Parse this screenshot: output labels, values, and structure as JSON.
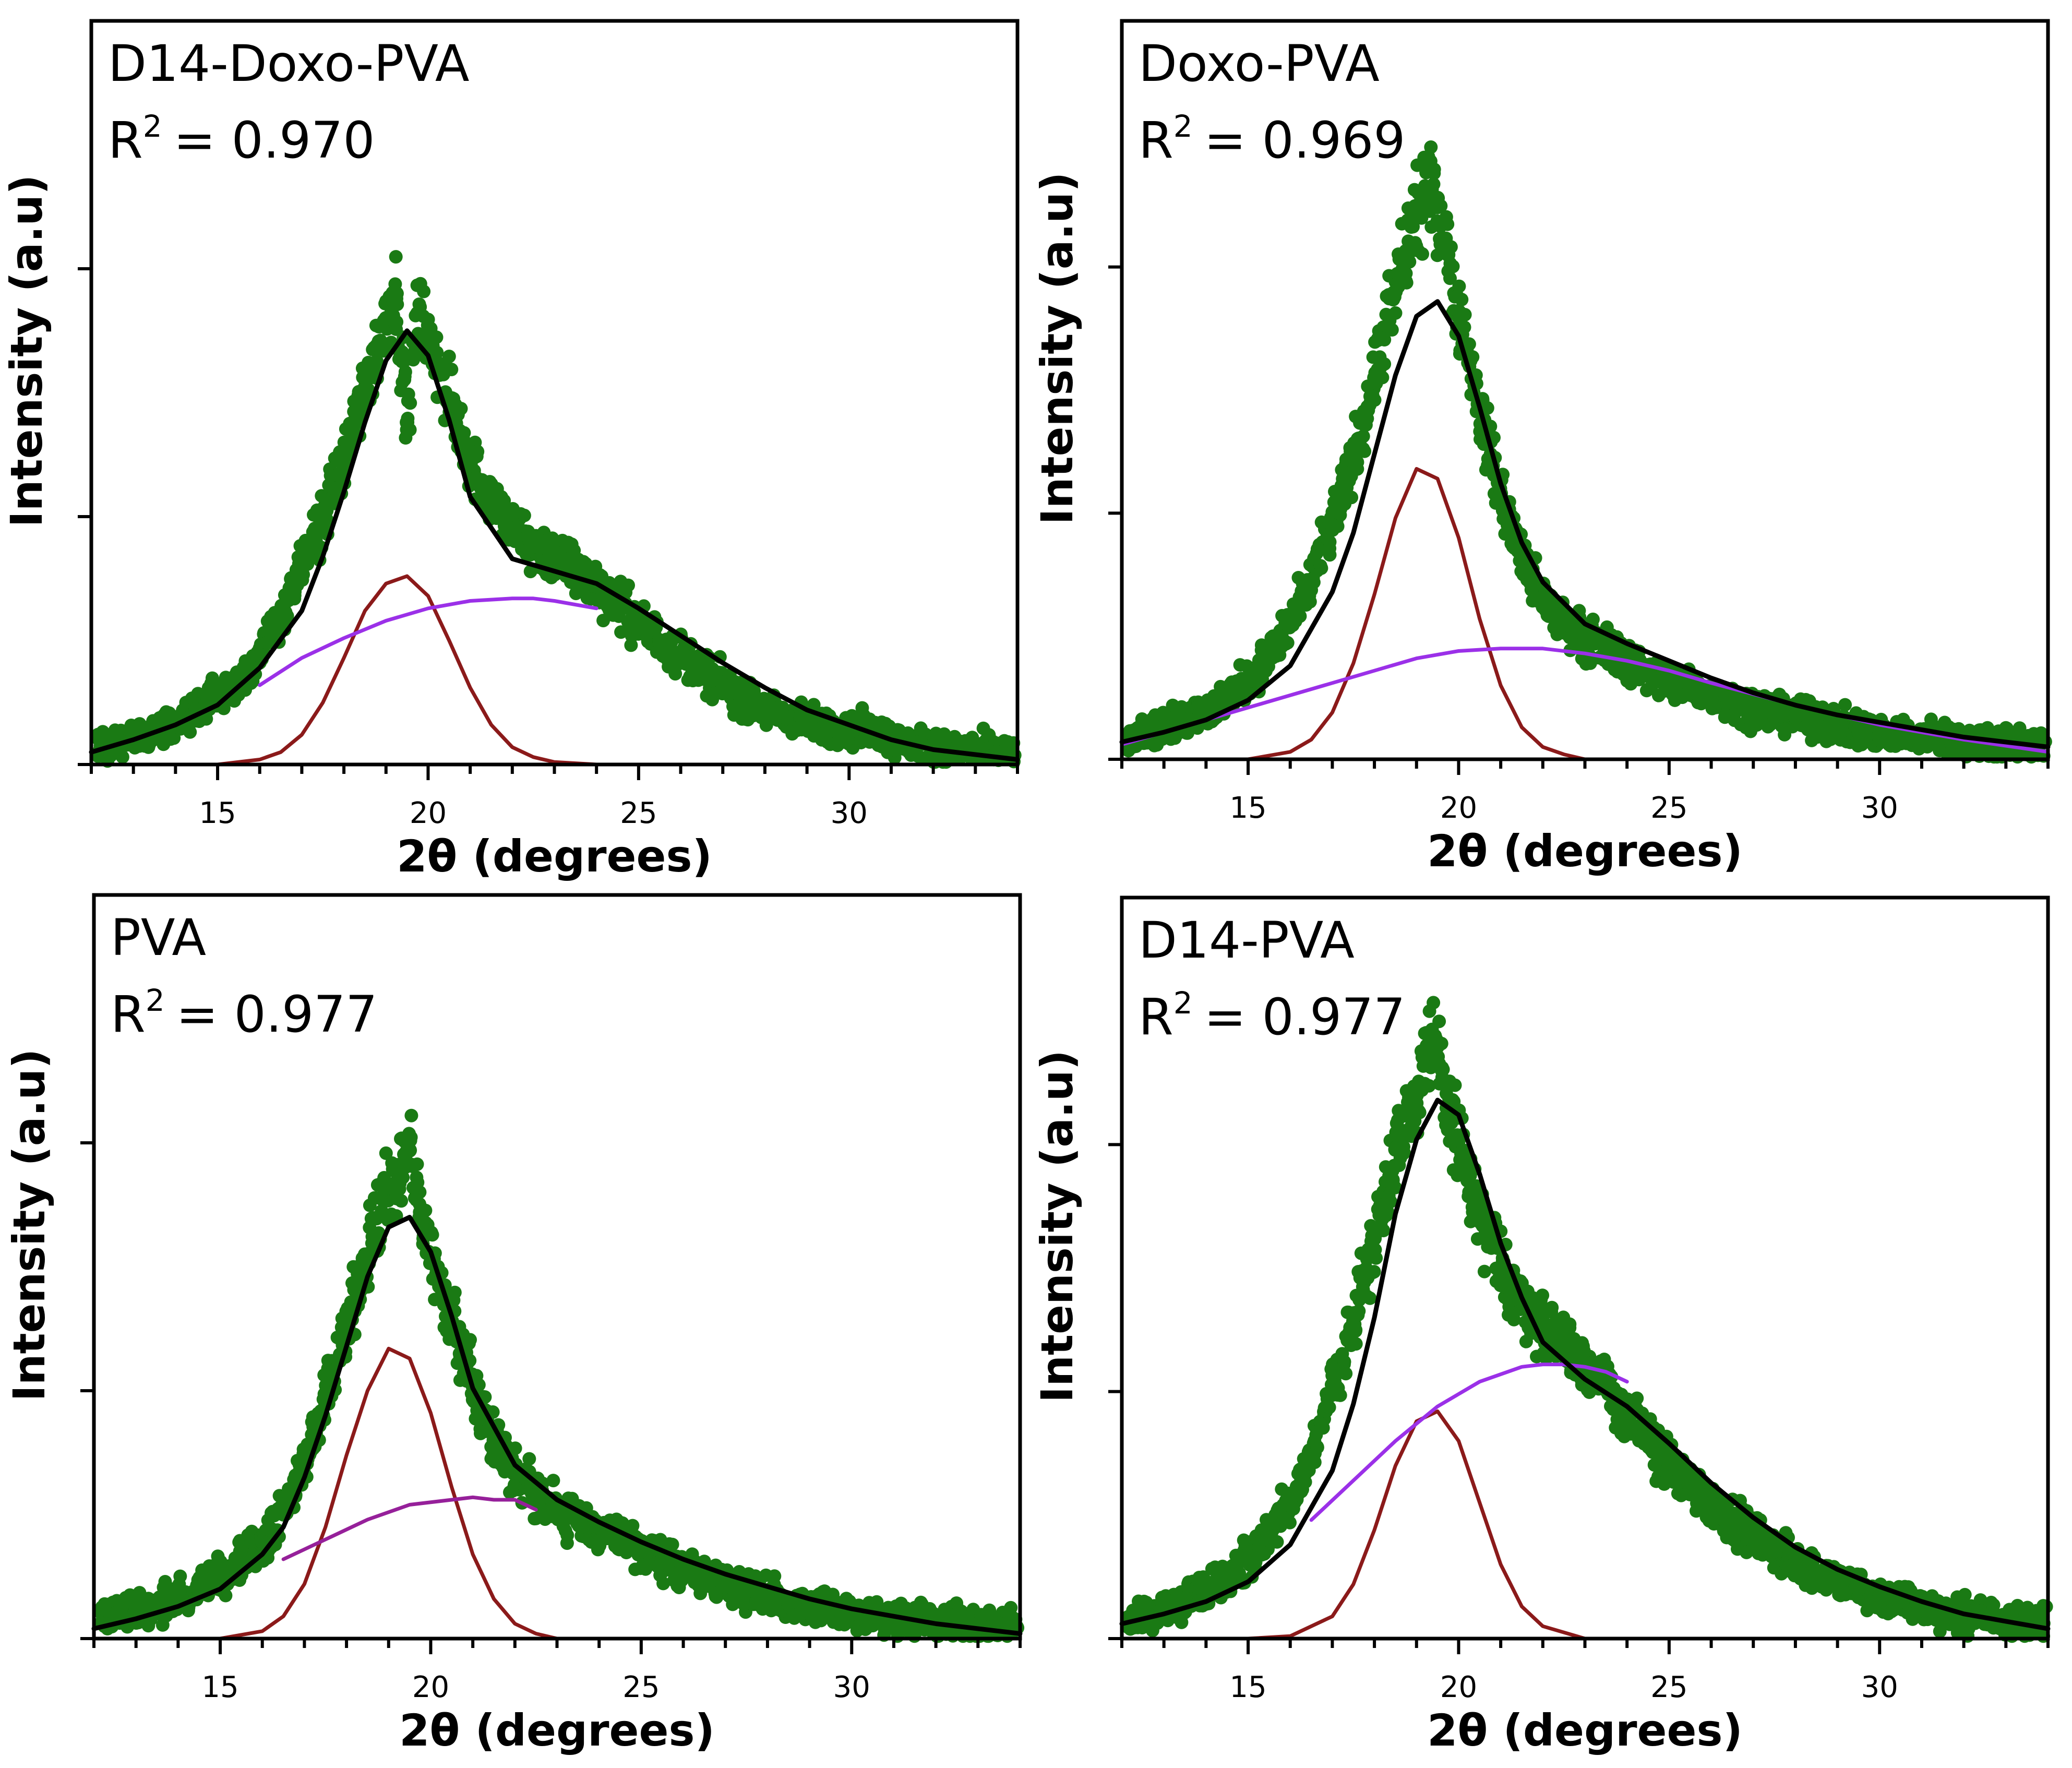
{
  "chart_data": [
    {
      "type": "scatter",
      "title": "D14-Doxo-PVA",
      "r2_label": "R",
      "r2_exponent": "2",
      "r2_value": "= 0.970",
      "xlabel": "2θ (degrees)",
      "ylabel": "Intensity (a.u)",
      "xlim": [
        12,
        34
      ],
      "ylim": [
        0,
        3
      ],
      "xticks": [
        "15",
        "20",
        "25",
        "30"
      ],
      "xtick_values": [
        15,
        20,
        25,
        30
      ],
      "ytick_values": [
        0,
        1,
        2
      ],
      "series": [
        {
          "name": "data",
          "color": "#1a7a14",
          "kind": "points",
          "x": [
            12.5,
            13,
            13.5,
            14,
            14.5,
            15,
            15.5,
            16,
            16.5,
            17,
            17.5,
            18,
            18.5,
            19,
            19.25,
            19.5,
            19.75,
            20,
            20.5,
            21,
            21.5,
            22,
            22.5,
            23,
            23.5,
            24,
            24.5,
            25,
            25.5,
            26,
            26.5,
            27,
            27.5,
            28,
            28.5,
            29,
            29.5,
            30,
            30.5,
            31,
            31.5,
            32,
            32.5,
            33,
            33.5
          ],
          "y": [
            0.08,
            0.11,
            0.13,
            0.17,
            0.22,
            0.27,
            0.34,
            0.44,
            0.6,
            0.78,
            1.0,
            1.23,
            1.52,
            1.8,
            1.9,
            1.38,
            1.82,
            1.72,
            1.48,
            1.23,
            1.06,
            0.95,
            0.88,
            0.84,
            0.78,
            0.72,
            0.66,
            0.57,
            0.5,
            0.45,
            0.38,
            0.32,
            0.26,
            0.22,
            0.19,
            0.17,
            0.15,
            0.13,
            0.15,
            0.1,
            0.08,
            0.07,
            0.06,
            0.06,
            0.05
          ]
        },
        {
          "name": "fit",
          "color": "#000000",
          "kind": "line",
          "x": [
            12,
            13,
            14,
            15,
            16,
            17,
            17.5,
            18,
            18.5,
            19,
            19.5,
            20,
            20.5,
            21,
            22,
            23,
            24,
            25,
            26,
            27,
            28,
            29,
            30,
            31,
            32,
            33,
            34
          ],
          "y": [
            0.05,
            0.1,
            0.16,
            0.24,
            0.39,
            0.62,
            0.84,
            1.1,
            1.38,
            1.63,
            1.75,
            1.65,
            1.39,
            1.08,
            0.83,
            0.78,
            0.73,
            0.63,
            0.52,
            0.41,
            0.31,
            0.22,
            0.16,
            0.1,
            0.06,
            0.04,
            0.02
          ]
        },
        {
          "name": "crystalline peak",
          "color": "#8b1a1a",
          "kind": "line",
          "x": [
            14,
            15,
            16,
            16.5,
            17,
            17.5,
            18,
            18.5,
            19,
            19.5,
            20,
            20.5,
            21,
            21.5,
            22,
            22.5,
            23,
            24,
            25,
            27,
            29
          ],
          "y": [
            0,
            0,
            0.02,
            0.05,
            0.12,
            0.25,
            0.43,
            0.62,
            0.73,
            0.76,
            0.68,
            0.5,
            0.31,
            0.16,
            0.07,
            0.03,
            0.01,
            0,
            0,
            0,
            0
          ]
        },
        {
          "name": "amorphous halo",
          "color": "#9b30e8",
          "kind": "line",
          "x": [
            16,
            17,
            18,
            19,
            20,
            21,
            22,
            22.5,
            23,
            24
          ],
          "y": [
            0.32,
            0.43,
            0.51,
            0.58,
            0.63,
            0.66,
            0.67,
            0.67,
            0.66,
            0.63
          ]
        }
      ]
    },
    {
      "type": "scatter",
      "title": "Doxo-PVA",
      "r2_label": "R",
      "r2_exponent": "2",
      "r2_value": "= 0.969",
      "xlabel": "2θ (degrees)",
      "ylabel": "Intensity (a.u)",
      "xlim": [
        12,
        34
      ],
      "ylim": [
        0,
        3
      ],
      "xticks": [
        "15",
        "20",
        "25",
        "30"
      ],
      "xtick_values": [
        15,
        20,
        25,
        30
      ],
      "ytick_values": [
        0,
        1,
        2
      ],
      "series": [
        {
          "name": "data",
          "color": "#1a7a14",
          "kind": "points",
          "x": [
            12.5,
            13,
            13.5,
            14,
            14.5,
            15,
            15.5,
            16,
            16.5,
            17,
            17.5,
            18,
            18.5,
            19,
            19.25,
            19.5,
            19.75,
            20,
            20.5,
            21,
            21.5,
            22,
            22.5,
            23,
            23.5,
            24,
            24.5,
            25,
            25.5,
            26,
            26.5,
            27,
            27.5,
            28,
            28.5,
            29,
            29.5,
            30,
            30.5,
            31,
            31.5,
            32,
            32.5,
            33,
            33.5
          ],
          "y": [
            0.1,
            0.13,
            0.16,
            0.2,
            0.26,
            0.32,
            0.42,
            0.55,
            0.72,
            0.95,
            1.22,
            1.55,
            1.9,
            2.2,
            2.3,
            2.28,
            2.05,
            1.82,
            1.42,
            1.08,
            0.82,
            0.64,
            0.55,
            0.49,
            0.45,
            0.4,
            0.35,
            0.31,
            0.29,
            0.26,
            0.23,
            0.21,
            0.19,
            0.17,
            0.15,
            0.14,
            0.12,
            0.11,
            0.1,
            0.09,
            0.09,
            0.08,
            0.07,
            0.07,
            0.06
          ]
        },
        {
          "name": "fit",
          "color": "#000000",
          "kind": "line",
          "x": [
            12,
            13,
            14,
            15,
            16,
            17,
            17.5,
            18,
            18.5,
            19,
            19.5,
            20,
            20.5,
            21,
            21.5,
            22,
            23,
            24,
            25,
            26,
            27,
            28,
            29,
            30,
            31,
            32,
            33,
            34
          ],
          "y": [
            0.07,
            0.11,
            0.16,
            0.24,
            0.38,
            0.68,
            0.92,
            1.24,
            1.56,
            1.8,
            1.86,
            1.72,
            1.43,
            1.12,
            0.88,
            0.72,
            0.55,
            0.47,
            0.4,
            0.33,
            0.27,
            0.22,
            0.18,
            0.15,
            0.12,
            0.09,
            0.07,
            0.05
          ]
        },
        {
          "name": "crystalline peak",
          "color": "#8b1a1a",
          "kind": "line",
          "x": [
            15,
            16,
            16.5,
            17,
            17.5,
            18,
            18.5,
            19,
            19.5,
            20,
            20.5,
            21,
            21.5,
            22,
            22.5,
            23,
            24,
            25
          ],
          "y": [
            0,
            0.03,
            0.08,
            0.19,
            0.39,
            0.67,
            0.98,
            1.18,
            1.14,
            0.9,
            0.57,
            0.3,
            0.13,
            0.05,
            0.02,
            0,
            0,
            0
          ]
        },
        {
          "name": "amorphous halo",
          "color": "#9b30e8",
          "kind": "line",
          "x": [
            12,
            14,
            16,
            18,
            19,
            20,
            21,
            22,
            23,
            24,
            25,
            26,
            28,
            30,
            32,
            34
          ],
          "y": [
            0.06,
            0.16,
            0.26,
            0.36,
            0.41,
            0.44,
            0.45,
            0.45,
            0.43,
            0.4,
            0.36,
            0.31,
            0.22,
            0.14,
            0.08,
            0.03
          ]
        }
      ]
    },
    {
      "type": "scatter",
      "title": "PVA",
      "r2_label": "R",
      "r2_exponent": "2",
      "r2_value": "= 0.977",
      "xlabel": "2θ (degrees)",
      "ylabel": "Intensity (a.u)",
      "xlim": [
        12,
        34
      ],
      "ylim": [
        0,
        3
      ],
      "xticks": [
        "15",
        "20",
        "25",
        "30"
      ],
      "xtick_values": [
        15,
        20,
        25,
        30
      ],
      "ytick_values": [
        0,
        1,
        2
      ],
      "series": [
        {
          "name": "data",
          "color": "#1a7a14",
          "kind": "points",
          "x": [
            12.5,
            13,
            13.5,
            14,
            14.5,
            15,
            15.5,
            16,
            16.5,
            17,
            17.5,
            18,
            18.5,
            19,
            19.25,
            19.5,
            19.75,
            20,
            20.5,
            21,
            21.5,
            22,
            22.5,
            23,
            23.5,
            24,
            24.5,
            25,
            25.5,
            26,
            26.5,
            27,
            27.5,
            28,
            28.5,
            29,
            29.5,
            30,
            30.5,
            31,
            31.5,
            32,
            32.5,
            33,
            33.5
          ],
          "y": [
            0.1,
            0.12,
            0.13,
            0.16,
            0.2,
            0.25,
            0.31,
            0.39,
            0.52,
            0.7,
            0.95,
            1.26,
            1.55,
            1.82,
            1.85,
            1.97,
            1.72,
            1.55,
            1.28,
            1.02,
            0.8,
            0.68,
            0.58,
            0.52,
            0.48,
            0.45,
            0.41,
            0.36,
            0.32,
            0.28,
            0.24,
            0.21,
            0.19,
            0.17,
            0.14,
            0.13,
            0.12,
            0.1,
            0.09,
            0.08,
            0.08,
            0.07,
            0.07,
            0.06,
            0.06
          ]
        },
        {
          "name": "fit",
          "color": "#000000",
          "kind": "line",
          "x": [
            12,
            13,
            14,
            15,
            16,
            16.5,
            17,
            17.5,
            18,
            18.5,
            19,
            19.5,
            20,
            20.5,
            21,
            22,
            23,
            24,
            25,
            26,
            27,
            28,
            29,
            30,
            31,
            32,
            33,
            34
          ],
          "y": [
            0.04,
            0.08,
            0.13,
            0.2,
            0.34,
            0.45,
            0.65,
            0.9,
            1.18,
            1.46,
            1.66,
            1.7,
            1.56,
            1.3,
            1.01,
            0.7,
            0.56,
            0.47,
            0.39,
            0.32,
            0.26,
            0.21,
            0.16,
            0.12,
            0.09,
            0.06,
            0.04,
            0.02
          ]
        },
        {
          "name": "crystalline peak",
          "color": "#8b1a1a",
          "kind": "line",
          "x": [
            15,
            16,
            16.5,
            17,
            17.5,
            18,
            18.5,
            19,
            19.5,
            20,
            20.5,
            21,
            21.5,
            22,
            22.5,
            23,
            23.5,
            24
          ],
          "y": [
            0,
            0.03,
            0.09,
            0.22,
            0.45,
            0.74,
            1.0,
            1.17,
            1.13,
            0.91,
            0.61,
            0.34,
            0.16,
            0.06,
            0.02,
            0,
            0,
            0
          ]
        },
        {
          "name": "amorphous halo",
          "color": "#96209a",
          "kind": "line",
          "x": [
            16.5,
            17.5,
            18.5,
            19.5,
            20.5,
            21,
            21.5,
            22,
            22.5
          ],
          "y": [
            0.32,
            0.4,
            0.48,
            0.54,
            0.56,
            0.57,
            0.56,
            0.56,
            0.52
          ]
        }
      ]
    },
    {
      "type": "scatter",
      "title": "D14-PVA",
      "r2_label": "R",
      "r2_exponent": "2",
      "r2_value": "= 0.977",
      "xlabel": "2θ (degrees)",
      "ylabel": "Intensity (a.u)",
      "xlim": [
        12,
        34
      ],
      "ylim": [
        0,
        3
      ],
      "xticks": [
        "15",
        "20",
        "25",
        "30"
      ],
      "xtick_values": [
        15,
        20,
        25,
        30
      ],
      "ytick_values": [
        0,
        1,
        2
      ],
      "series": [
        {
          "name": "data",
          "color": "#1a7a14",
          "kind": "points",
          "x": [
            12.5,
            13,
            13.5,
            14,
            14.5,
            15,
            15.5,
            16,
            16.5,
            17,
            17.5,
            18,
            18.5,
            19,
            19.25,
            19.5,
            19.75,
            20,
            20.5,
            21,
            21.5,
            22,
            22.5,
            23,
            23.5,
            24,
            24.5,
            25,
            25.5,
            26,
            26.5,
            27,
            27.5,
            28,
            28.5,
            29,
            29.5,
            30,
            30.5,
            31,
            31.5,
            32,
            32.5,
            33,
            33.5
          ],
          "y": [
            0.08,
            0.12,
            0.15,
            0.19,
            0.25,
            0.32,
            0.42,
            0.56,
            0.74,
            1.0,
            1.28,
            1.62,
            1.98,
            2.2,
            2.4,
            2.32,
            2.15,
            2.02,
            1.7,
            1.5,
            1.37,
            1.27,
            1.2,
            1.12,
            1.02,
            0.9,
            0.8,
            0.71,
            0.62,
            0.55,
            0.48,
            0.42,
            0.36,
            0.31,
            0.27,
            0.23,
            0.2,
            0.17,
            0.15,
            0.13,
            0.11,
            0.1,
            0.09,
            0.08,
            0.07
          ]
        },
        {
          "name": "fit",
          "color": "#000000",
          "kind": "line",
          "x": [
            12,
            13,
            14,
            15,
            16,
            17,
            17.5,
            18,
            18.5,
            19,
            19.5,
            20,
            20.5,
            21,
            21.5,
            22,
            23,
            24,
            25,
            26,
            27,
            28,
            29,
            30,
            31,
            32,
            33,
            34
          ],
          "y": [
            0.06,
            0.1,
            0.15,
            0.23,
            0.38,
            0.68,
            0.95,
            1.3,
            1.72,
            2.02,
            2.18,
            2.12,
            1.88,
            1.6,
            1.38,
            1.2,
            1.05,
            0.94,
            0.79,
            0.63,
            0.49,
            0.37,
            0.28,
            0.21,
            0.15,
            0.1,
            0.07,
            0.04
          ]
        },
        {
          "name": "crystalline peak",
          "color": "#8b1a1a",
          "kind": "line",
          "x": [
            15,
            16,
            17,
            17.5,
            18,
            18.5,
            19,
            19.5,
            20,
            20.5,
            21,
            21.5,
            22,
            23,
            24,
            26,
            28,
            30.2
          ],
          "y": [
            0,
            0.01,
            0.09,
            0.22,
            0.44,
            0.7,
            0.88,
            0.92,
            0.8,
            0.55,
            0.3,
            0.13,
            0.05,
            0,
            0,
            0,
            0,
            0
          ]
        },
        {
          "name": "amorphous halo",
          "color": "#9b30e8",
          "kind": "line",
          "x": [
            16.5,
            17.5,
            18.5,
            19.5,
            20.5,
            21.5,
            22,
            22.5,
            23,
            23.5,
            24
          ],
          "y": [
            0.48,
            0.64,
            0.8,
            0.94,
            1.04,
            1.1,
            1.11,
            1.11,
            1.1,
            1.08,
            1.04
          ]
        }
      ]
    }
  ]
}
